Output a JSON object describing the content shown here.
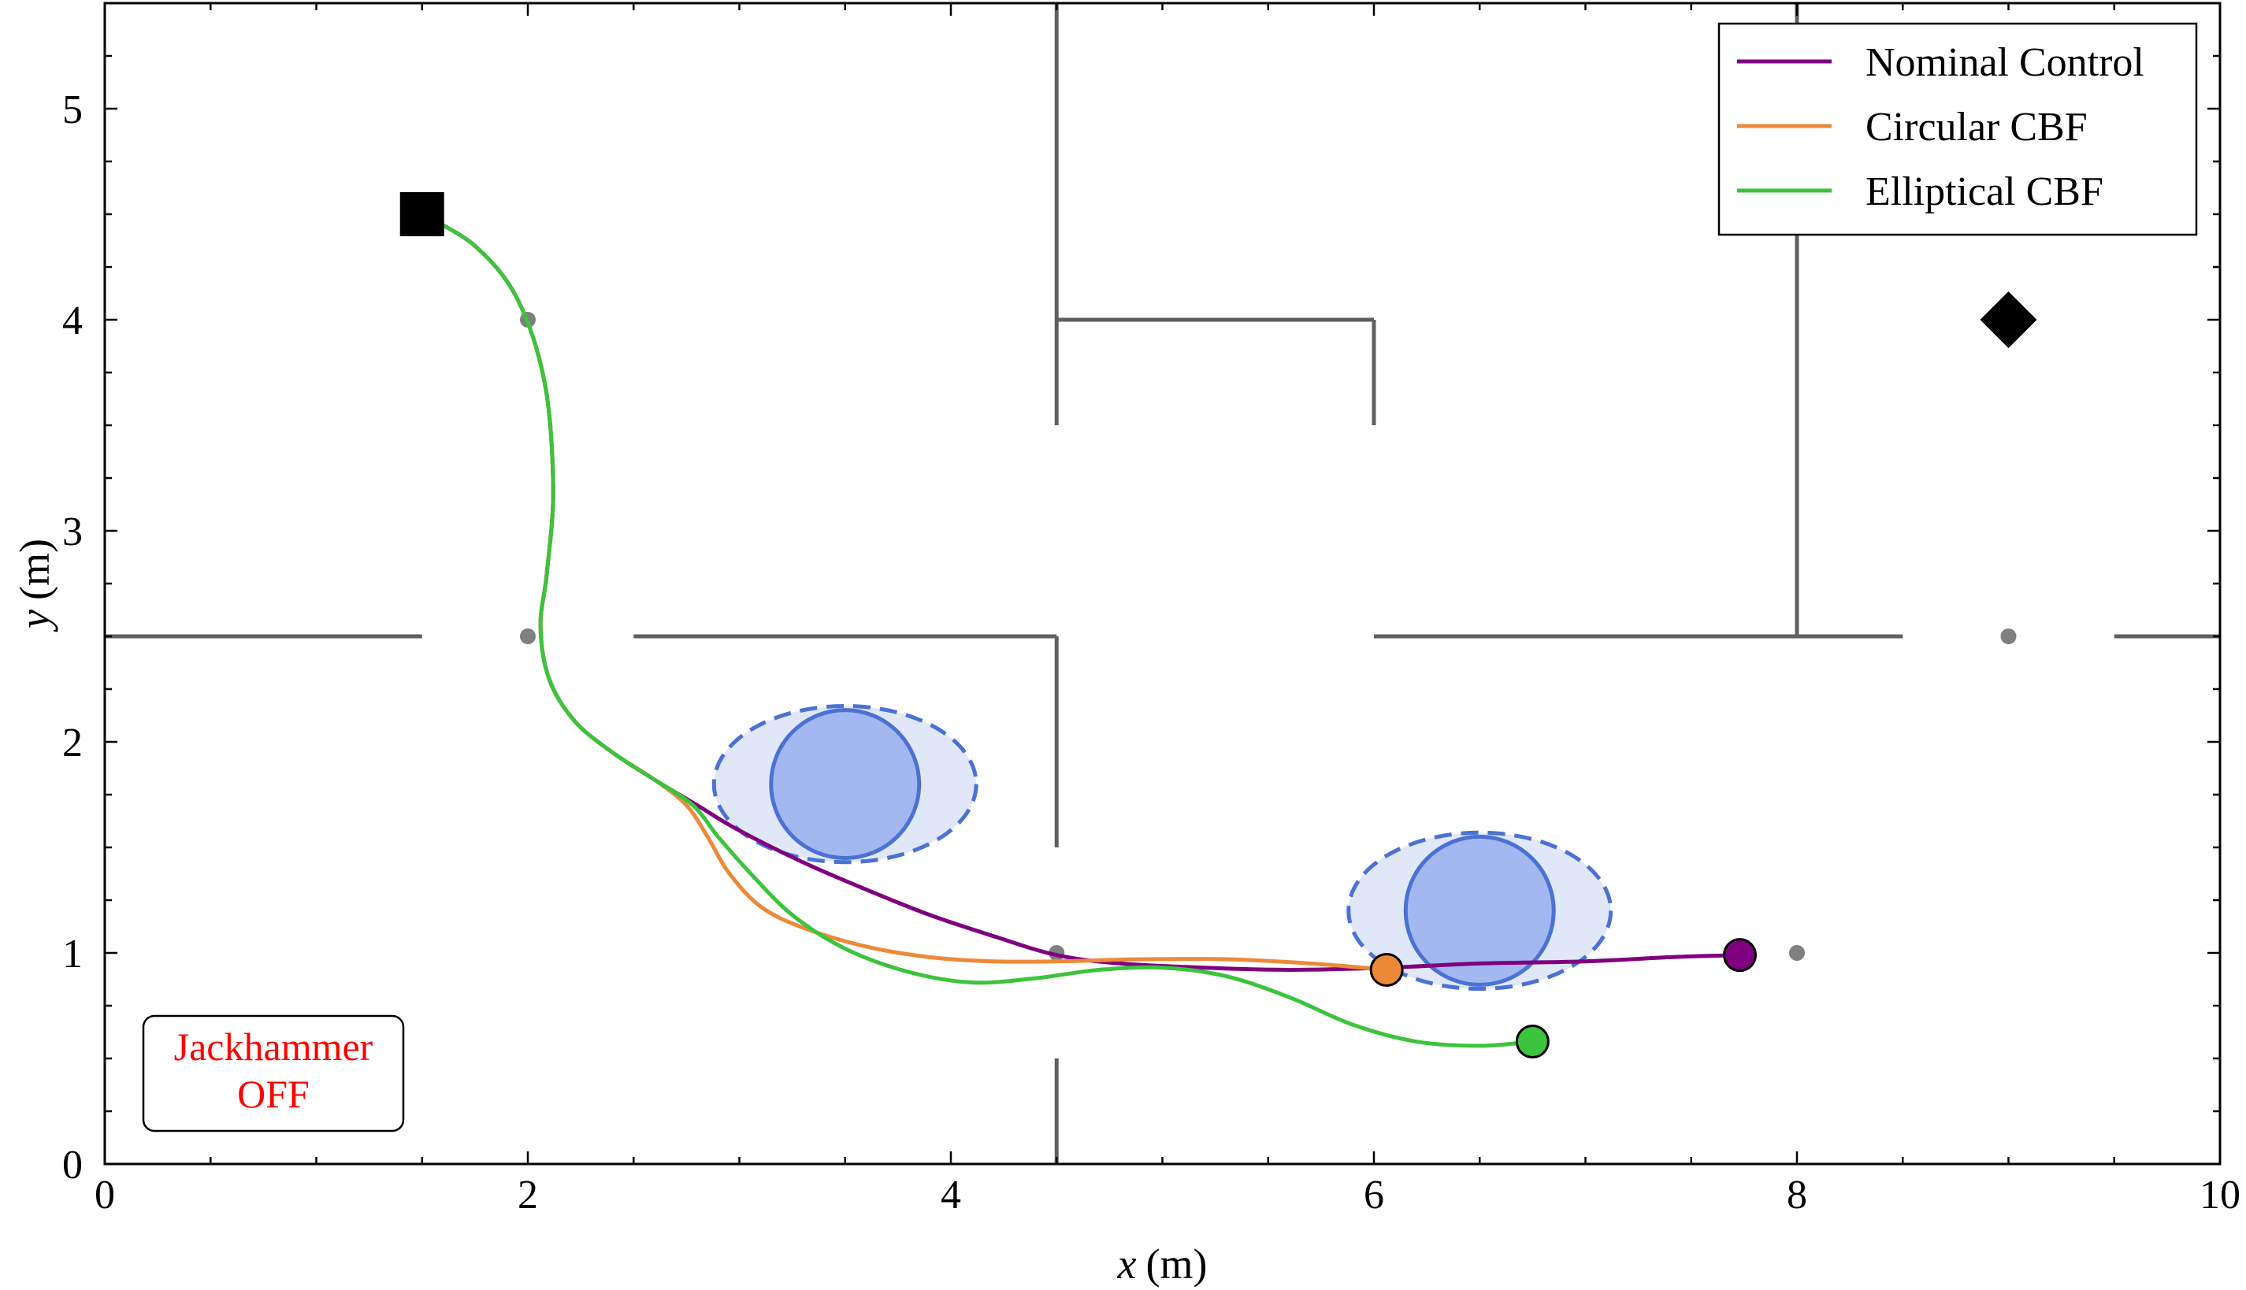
{
  "chart_data": {
    "type": "line",
    "title": "",
    "xlabel_var": "x",
    "xlabel_unit": "(m)",
    "ylabel_var": "y",
    "ylabel_unit": "(m)",
    "xlim": [
      0,
      10
    ],
    "ylim": [
      0,
      5.5
    ],
    "xticks": [
      0,
      2,
      4,
      6,
      8,
      10
    ],
    "yticks": [
      0,
      1,
      2,
      3,
      4,
      5
    ],
    "grid": false,
    "legend_position": "top-right",
    "series": [
      {
        "name": "Nominal Control",
        "color": "#800080",
        "points": [
          [
            1.5,
            4.5
          ],
          [
            1.75,
            4.35
          ],
          [
            1.95,
            4.1
          ],
          [
            2.08,
            3.7
          ],
          [
            2.12,
            3.2
          ],
          [
            2.09,
            2.8
          ],
          [
            2.06,
            2.55
          ],
          [
            2.1,
            2.3
          ],
          [
            2.22,
            2.1
          ],
          [
            2.4,
            1.95
          ],
          [
            2.6,
            1.82
          ],
          [
            2.8,
            1.7
          ],
          [
            3.0,
            1.58
          ],
          [
            3.3,
            1.43
          ],
          [
            3.6,
            1.3
          ],
          [
            3.9,
            1.18
          ],
          [
            4.2,
            1.08
          ],
          [
            4.5,
            0.99
          ],
          [
            4.8,
            0.95
          ],
          [
            5.2,
            0.93
          ],
          [
            5.6,
            0.92
          ],
          [
            6.06,
            0.93
          ],
          [
            6.5,
            0.95
          ],
          [
            7.0,
            0.96
          ],
          [
            7.4,
            0.98
          ],
          [
            7.73,
            0.99
          ]
        ]
      },
      {
        "name": "Circular CBF",
        "color": "#ed8a3a",
        "points": [
          [
            1.5,
            4.5
          ],
          [
            1.75,
            4.35
          ],
          [
            1.95,
            4.1
          ],
          [
            2.08,
            3.7
          ],
          [
            2.12,
            3.2
          ],
          [
            2.09,
            2.8
          ],
          [
            2.06,
            2.55
          ],
          [
            2.1,
            2.3
          ],
          [
            2.22,
            2.1
          ],
          [
            2.4,
            1.95
          ],
          [
            2.6,
            1.82
          ],
          [
            2.75,
            1.7
          ],
          [
            2.85,
            1.55
          ],
          [
            2.95,
            1.38
          ],
          [
            3.1,
            1.22
          ],
          [
            3.3,
            1.12
          ],
          [
            3.6,
            1.03
          ],
          [
            3.9,
            0.98
          ],
          [
            4.2,
            0.96
          ],
          [
            4.5,
            0.96
          ],
          [
            4.9,
            0.97
          ],
          [
            5.3,
            0.97
          ],
          [
            5.7,
            0.95
          ],
          [
            6.06,
            0.92
          ]
        ]
      },
      {
        "name": "Elliptical CBF",
        "color": "#3cc43c",
        "points": [
          [
            1.5,
            4.5
          ],
          [
            1.75,
            4.35
          ],
          [
            1.95,
            4.1
          ],
          [
            2.08,
            3.7
          ],
          [
            2.12,
            3.2
          ],
          [
            2.09,
            2.8
          ],
          [
            2.06,
            2.55
          ],
          [
            2.1,
            2.3
          ],
          [
            2.22,
            2.1
          ],
          [
            2.4,
            1.95
          ],
          [
            2.6,
            1.82
          ],
          [
            2.78,
            1.7
          ],
          [
            2.9,
            1.55
          ],
          [
            3.05,
            1.38
          ],
          [
            3.25,
            1.18
          ],
          [
            3.5,
            1.02
          ],
          [
            3.8,
            0.91
          ],
          [
            4.1,
            0.86
          ],
          [
            4.4,
            0.88
          ],
          [
            4.7,
            0.92
          ],
          [
            5.0,
            0.93
          ],
          [
            5.3,
            0.89
          ],
          [
            5.6,
            0.79
          ],
          [
            5.9,
            0.66
          ],
          [
            6.2,
            0.58
          ],
          [
            6.5,
            0.56
          ],
          [
            6.75,
            0.58
          ]
        ]
      }
    ],
    "endpoints": [
      {
        "series": "Nominal Control",
        "x": 7.73,
        "y": 0.99,
        "color": "#800080"
      },
      {
        "series": "Circular CBF",
        "x": 6.06,
        "y": 0.92,
        "color": "#ed8a3a"
      },
      {
        "series": "Elliptical CBF",
        "x": 6.75,
        "y": 0.58,
        "color": "#3cc43c"
      }
    ],
    "start_marker": {
      "shape": "square",
      "x": 1.5,
      "y": 4.5,
      "color": "#000000"
    },
    "goal_marker": {
      "shape": "diamond",
      "x": 9.0,
      "y": 4.0,
      "color": "#000000"
    },
    "obstacles": [
      {
        "cx": 3.5,
        "cy": 1.8,
        "r": 0.35,
        "ellipse_rx": 0.62,
        "ellipse_ry": 0.37,
        "fill": "#a3b8f0",
        "halo_fill": "#e0e7f8",
        "stroke": "#4a72d6"
      },
      {
        "cx": 6.5,
        "cy": 1.2,
        "r": 0.35,
        "ellipse_rx": 0.62,
        "ellipse_ry": 0.37,
        "fill": "#a3b8f0",
        "halo_fill": "#e0e7f8",
        "stroke": "#4a72d6"
      }
    ],
    "walls": [
      [
        [
          0,
          2.5
        ],
        [
          1.5,
          2.5
        ]
      ],
      [
        [
          2.5,
          2.5
        ],
        [
          4.5,
          2.5
        ]
      ],
      [
        [
          6.0,
          2.5
        ],
        [
          8.5,
          2.5
        ]
      ],
      [
        [
          9.5,
          2.5
        ],
        [
          10,
          2.5
        ]
      ],
      [
        [
          4.5,
          3.5
        ],
        [
          4.5,
          5.5
        ]
      ],
      [
        [
          4.5,
          4.0
        ],
        [
          6.0,
          4.0
        ]
      ],
      [
        [
          6.0,
          4.0
        ],
        [
          6.0,
          3.5
        ]
      ],
      [
        [
          4.5,
          2.5
        ],
        [
          4.5,
          1.5
        ]
      ],
      [
        [
          4.5,
          0.5
        ],
        [
          4.5,
          0
        ]
      ],
      [
        [
          8.0,
          2.5
        ],
        [
          8.0,
          5.5
        ]
      ]
    ],
    "waypoints": [
      [
        2,
        4
      ],
      [
        2,
        2.5
      ],
      [
        4.5,
        1
      ],
      [
        8,
        1
      ],
      [
        9,
        2.5
      ]
    ],
    "annotation": {
      "line1": "Jackhammer",
      "line2": "OFF",
      "color": "#ff0000"
    }
  }
}
